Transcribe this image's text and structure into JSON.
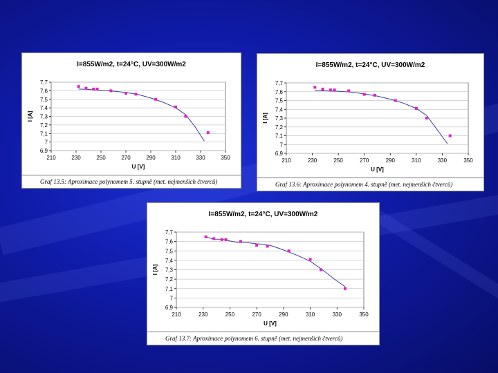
{
  "charts": [
    {
      "type": "scatter",
      "title": "I=855W/m2, t=24°C, UV=300W/m2",
      "xlabel": "U [V]",
      "ylabel": "I [A]",
      "xlim": [
        210,
        350
      ],
      "ylim": [
        6.9,
        7.7
      ],
      "x_ticks": [
        "210",
        "230",
        "250",
        "270",
        "290",
        "310",
        "330",
        "350"
      ],
      "y_ticks": [
        "7,7",
        "7,6",
        "7,5",
        "7,4",
        "7,3",
        "7,2",
        "7,1",
        "7",
        "6,9"
      ],
      "points": [
        [
          232,
          7.65
        ],
        [
          238,
          7.63
        ],
        [
          244,
          7.62
        ],
        [
          247,
          7.62
        ],
        [
          258,
          7.6
        ],
        [
          270,
          7.57
        ],
        [
          278,
          7.56
        ],
        [
          294,
          7.5
        ],
        [
          310,
          7.41
        ],
        [
          318,
          7.3
        ],
        [
          336,
          7.11
        ]
      ],
      "fit_curve": [
        [
          232,
          7.62
        ],
        [
          240,
          7.615
        ],
        [
          250,
          7.605
        ],
        [
          260,
          7.595
        ],
        [
          270,
          7.58
        ],
        [
          280,
          7.555
        ],
        [
          290,
          7.515
        ],
        [
          300,
          7.465
        ],
        [
          310,
          7.4
        ],
        [
          318,
          7.32
        ],
        [
          326,
          7.17
        ],
        [
          333,
          7.01
        ]
      ],
      "caption": "Graf 13.5: Aproximace polynomem 5. stupně (met. nejmenších čtverců)"
    },
    {
      "type": "scatter",
      "title": "I=855W/m2, t=24°C, UV=300W/m2",
      "xlabel": "U [V]",
      "ylabel": "I [A]",
      "xlim": [
        210,
        350
      ],
      "ylim": [
        6.9,
        7.7
      ],
      "x_ticks": [
        "210",
        "230",
        "250",
        "270",
        "290",
        "310",
        "330",
        "350"
      ],
      "y_ticks": [
        "7,7",
        "7,6",
        "7,5",
        "7,4",
        "7,3",
        "7,2",
        "7,1",
        "7",
        "6,9"
      ],
      "points": [
        [
          232,
          7.65
        ],
        [
          238,
          7.63
        ],
        [
          244,
          7.62
        ],
        [
          247,
          7.62
        ],
        [
          258,
          7.61
        ],
        [
          270,
          7.57
        ],
        [
          278,
          7.56
        ],
        [
          294,
          7.5
        ],
        [
          310,
          7.41
        ],
        [
          318,
          7.3
        ],
        [
          336,
          7.1
        ]
      ],
      "fit_curve": [
        [
          232,
          7.61
        ],
        [
          240,
          7.61
        ],
        [
          250,
          7.605
        ],
        [
          260,
          7.595
        ],
        [
          270,
          7.575
        ],
        [
          280,
          7.55
        ],
        [
          290,
          7.515
        ],
        [
          300,
          7.47
        ],
        [
          310,
          7.41
        ],
        [
          318,
          7.33
        ],
        [
          326,
          7.17
        ],
        [
          334,
          7.01
        ]
      ],
      "caption": "Graf 13.6: Aproximace polynomem 4. stupně (met. nejmenších čtverců)"
    },
    {
      "type": "scatter",
      "title": "I=855W/m2, t=24°C, UV=300W/m2",
      "xlabel": "U [V]",
      "ylabel": "I [A]",
      "xlim": [
        210,
        350
      ],
      "ylim": [
        6.9,
        7.7
      ],
      "x_ticks": [
        "210",
        "230",
        "250",
        "270",
        "290",
        "310",
        "330",
        "350"
      ],
      "y_ticks": [
        "7,7",
        "7,6",
        "7,5",
        "7,4",
        "7,3",
        "7,2",
        "7,1",
        "7",
        "6,9"
      ],
      "points": [
        [
          232,
          7.65
        ],
        [
          238,
          7.63
        ],
        [
          244,
          7.62
        ],
        [
          247,
          7.62
        ],
        [
          258,
          7.6
        ],
        [
          270,
          7.56
        ],
        [
          278,
          7.55
        ],
        [
          294,
          7.5
        ],
        [
          310,
          7.41
        ],
        [
          318,
          7.3
        ],
        [
          336,
          7.1
        ]
      ],
      "fit_curve": [
        [
          232,
          7.65
        ],
        [
          238,
          7.625
        ],
        [
          244,
          7.625
        ],
        [
          250,
          7.605
        ],
        [
          256,
          7.59
        ],
        [
          262,
          7.59
        ],
        [
          270,
          7.575
        ],
        [
          276,
          7.57
        ],
        [
          282,
          7.55
        ],
        [
          290,
          7.51
        ],
        [
          300,
          7.455
        ],
        [
          310,
          7.39
        ],
        [
          320,
          7.29
        ],
        [
          328,
          7.2
        ],
        [
          336,
          7.12
        ]
      ],
      "caption": "Graf 13.7: Aproximace polynomem 6. stupně (met. nejmenších čtverců)"
    }
  ]
}
